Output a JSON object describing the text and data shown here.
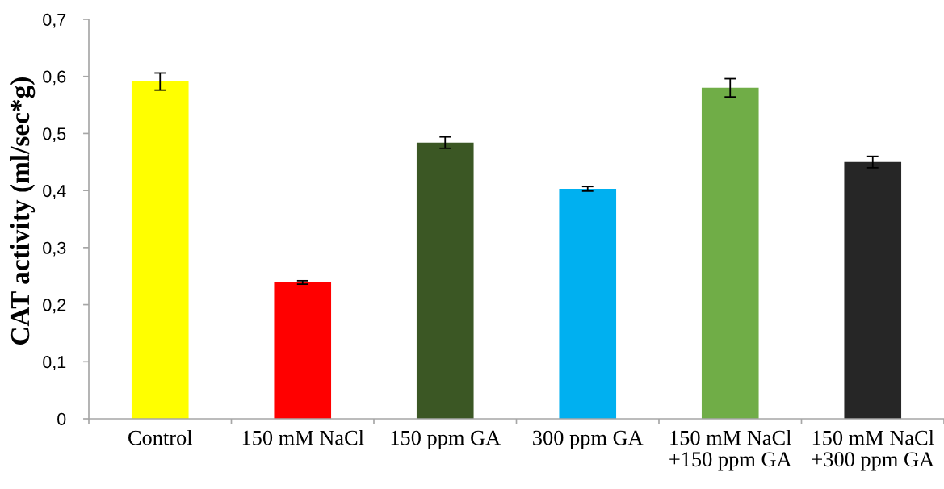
{
  "chart_data": {
    "type": "bar",
    "ylabel": "CAT activity (ml/sec*g)",
    "categories": [
      "Control",
      "150 mM NaCl",
      "150 ppm GA",
      "300 ppm GA",
      "150 mM NaCl\n+150 ppm GA",
      "150 mM NaCl\n+300 ppm GA"
    ],
    "values": [
      0.591,
      0.239,
      0.484,
      0.403,
      0.58,
      0.45
    ],
    "errors": [
      0.015,
      0.003,
      0.01,
      0.004,
      0.016,
      0.01
    ],
    "colors": [
      "#ffff00",
      "#ff0000",
      "#3b5724",
      "#00b0f0",
      "#70ad47",
      "#262626"
    ],
    "ylim": [
      0,
      0.7
    ],
    "yticks": [
      0,
      {
        "value": 0.1,
        "label": "0,1"
      },
      {
        "value": 0.2,
        "label": "0,2"
      },
      {
        "value": 0.3,
        "label": "0,3"
      },
      {
        "value": 0.4,
        "label": "0,4"
      },
      {
        "value": 0.5,
        "label": "0,5"
      },
      {
        "value": 0.6,
        "label": "0,6"
      },
      {
        "value": 0.7,
        "label": "0,7"
      }
    ]
  }
}
